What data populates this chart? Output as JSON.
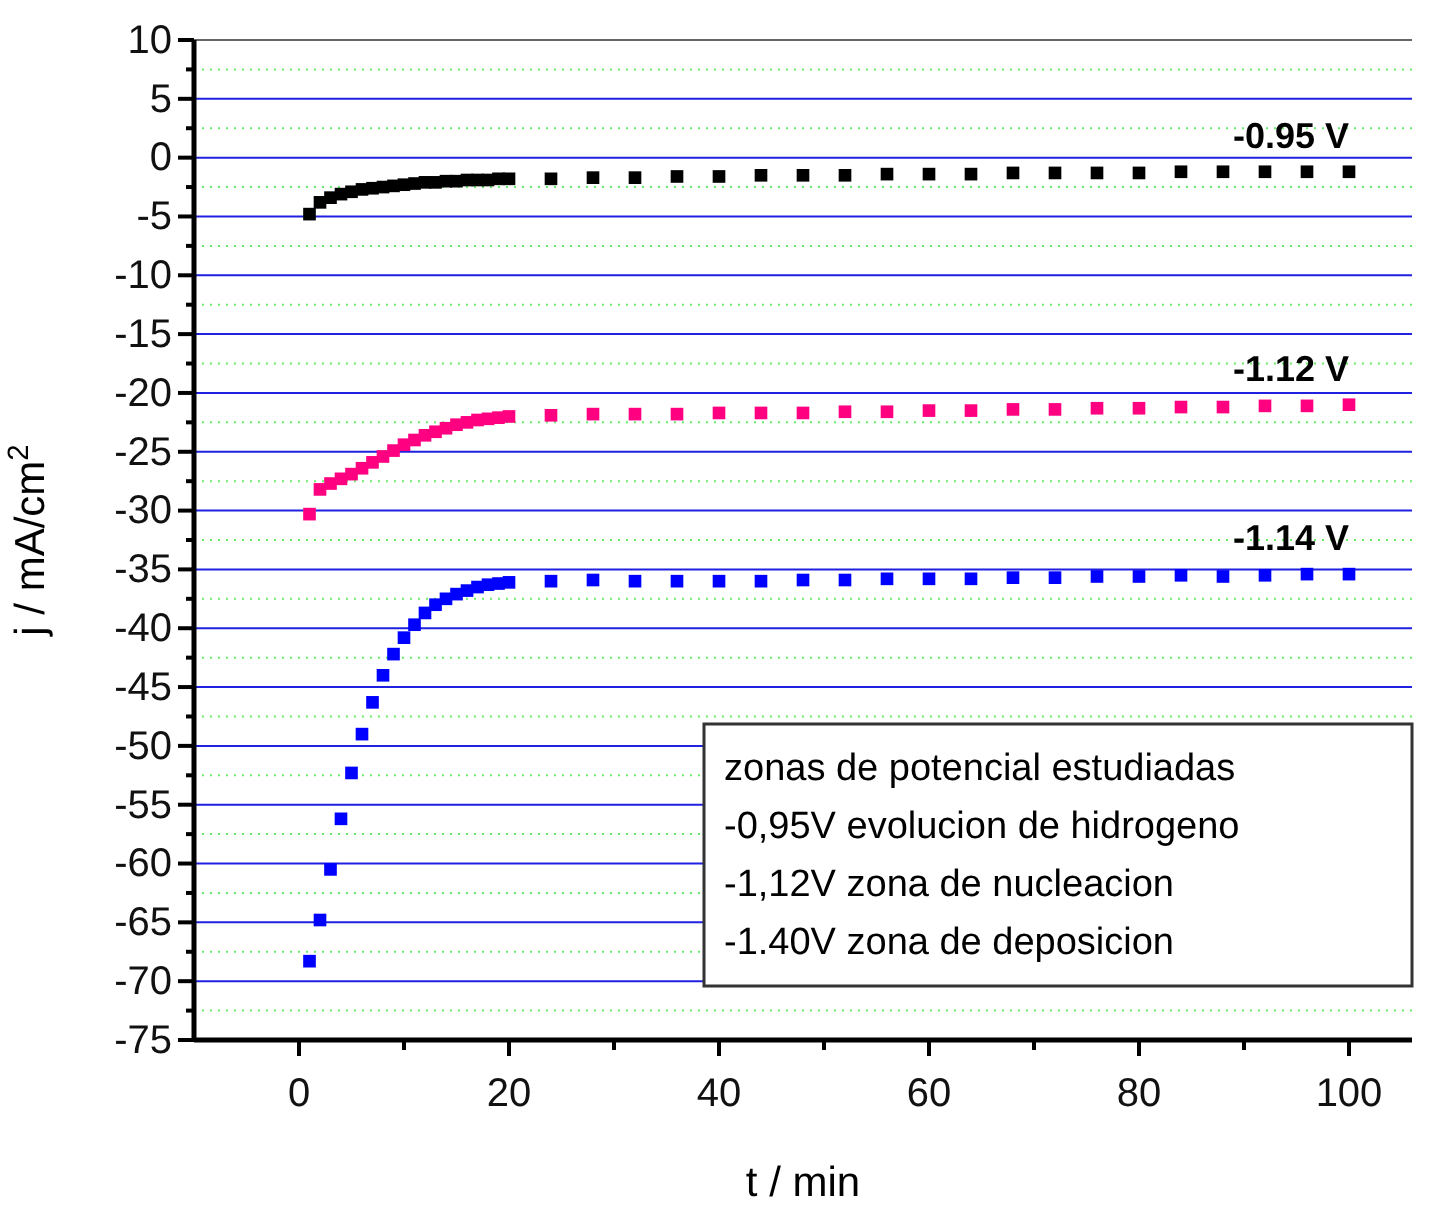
{
  "chart_data": {
    "type": "scatter",
    "xlabel": "t / min",
    "ylabel": "j / mA/cm$^{2}$",
    "xlim": [
      -10,
      106
    ],
    "ylim": [
      -75,
      10
    ],
    "xticks": [
      0,
      {
        "value": 10,
        "label": null
      },
      20,
      {
        "value": 30,
        "label": null
      },
      40,
      {
        "value": 50,
        "label": null
      },
      60,
      {
        "value": 70,
        "label": null
      },
      80,
      {
        "value": 90,
        "label": null
      },
      100
    ],
    "yticks": [
      -75,
      {
        "value": -72.5,
        "label": null
      },
      -70,
      {
        "value": -67.5,
        "label": null
      },
      -65,
      {
        "value": -62.5,
        "label": null
      },
      -60,
      {
        "value": -57.5,
        "label": null
      },
      -55,
      {
        "value": -52.5,
        "label": null
      },
      -50,
      {
        "value": -47.5,
        "label": null
      },
      -45,
      {
        "value": -42.5,
        "label": null
      },
      -40,
      {
        "value": -37.5,
        "label": null
      },
      -35,
      {
        "value": -32.5,
        "label": null
      },
      -30,
      {
        "value": -27.5,
        "label": null
      },
      -25,
      {
        "value": -22.5,
        "label": null
      },
      -20,
      {
        "value": -17.5,
        "label": null
      },
      -15,
      {
        "value": -12.5,
        "label": null
      },
      -10,
      {
        "value": -7.5,
        "label": null
      },
      -5,
      {
        "value": -2.5,
        "label": null
      },
      0,
      {
        "value": 2.5,
        "label": null
      },
      5,
      {
        "value": 7.5,
        "label": null
      },
      10
    ],
    "grid": "y",
    "marker": "square",
    "x": [
      1,
      2,
      3,
      4,
      5,
      6,
      7,
      8,
      9,
      10,
      11,
      12,
      13,
      14,
      15,
      16,
      17,
      18,
      19,
      20,
      24,
      28,
      32,
      36,
      40,
      44,
      48,
      52,
      56,
      60,
      64,
      68,
      72,
      76,
      80,
      84,
      88,
      92,
      96,
      100
    ],
    "series": [
      {
        "name": "-0.95 V",
        "color": "#000000",
        "values": [
          -4.8,
          -3.8,
          -3.4,
          -3.1,
          -2.9,
          -2.7,
          -2.6,
          -2.5,
          -2.4,
          -2.3,
          -2.2,
          -2.1,
          -2.1,
          -2.0,
          -2.0,
          -1.9,
          -1.9,
          -1.9,
          -1.8,
          -1.8,
          -1.8,
          -1.7,
          -1.7,
          -1.6,
          -1.6,
          -1.5,
          -1.5,
          -1.5,
          -1.4,
          -1.4,
          -1.4,
          -1.3,
          -1.3,
          -1.3,
          -1.3,
          -1.2,
          -1.2,
          -1.2,
          -1.2,
          -1.2
        ]
      },
      {
        "name": "-1.12 V",
        "color": "#ff0080",
        "values": [
          -30.3,
          -28.2,
          -27.7,
          -27.3,
          -26.9,
          -26.4,
          -25.9,
          -25.4,
          -24.9,
          -24.4,
          -24.0,
          -23.6,
          -23.3,
          -23.0,
          -22.7,
          -22.5,
          -22.3,
          -22.2,
          -22.1,
          -22.0,
          -21.9,
          -21.8,
          -21.8,
          -21.8,
          -21.7,
          -21.7,
          -21.7,
          -21.6,
          -21.6,
          -21.5,
          -21.5,
          -21.4,
          -21.4,
          -21.3,
          -21.3,
          -21.2,
          -21.2,
          -21.1,
          -21.1,
          -21.0
        ]
      },
      {
        "name": "-1.14 V",
        "color": "#0000ff",
        "values": [
          -68.3,
          -64.8,
          -60.5,
          -56.2,
          -52.3,
          -49.0,
          -46.3,
          -44.0,
          -42.2,
          -40.8,
          -39.7,
          -38.7,
          -38.0,
          -37.5,
          -37.1,
          -36.8,
          -36.5,
          -36.3,
          -36.2,
          -36.1,
          -36.0,
          -35.9,
          -36.0,
          -36.0,
          -36.0,
          -36.0,
          -35.9,
          -35.9,
          -35.8,
          -35.8,
          -35.8,
          -35.7,
          -35.7,
          -35.6,
          -35.6,
          -35.5,
          -35.6,
          -35.5,
          -35.4,
          -35.4
        ]
      }
    ],
    "annotations": [
      "zonas de potencial estudiadas",
      "-0,95V evolucion de hidrogeno",
      "-1,12V zona de nucleacion",
      "-1.40V zona de deposicion"
    ]
  }
}
